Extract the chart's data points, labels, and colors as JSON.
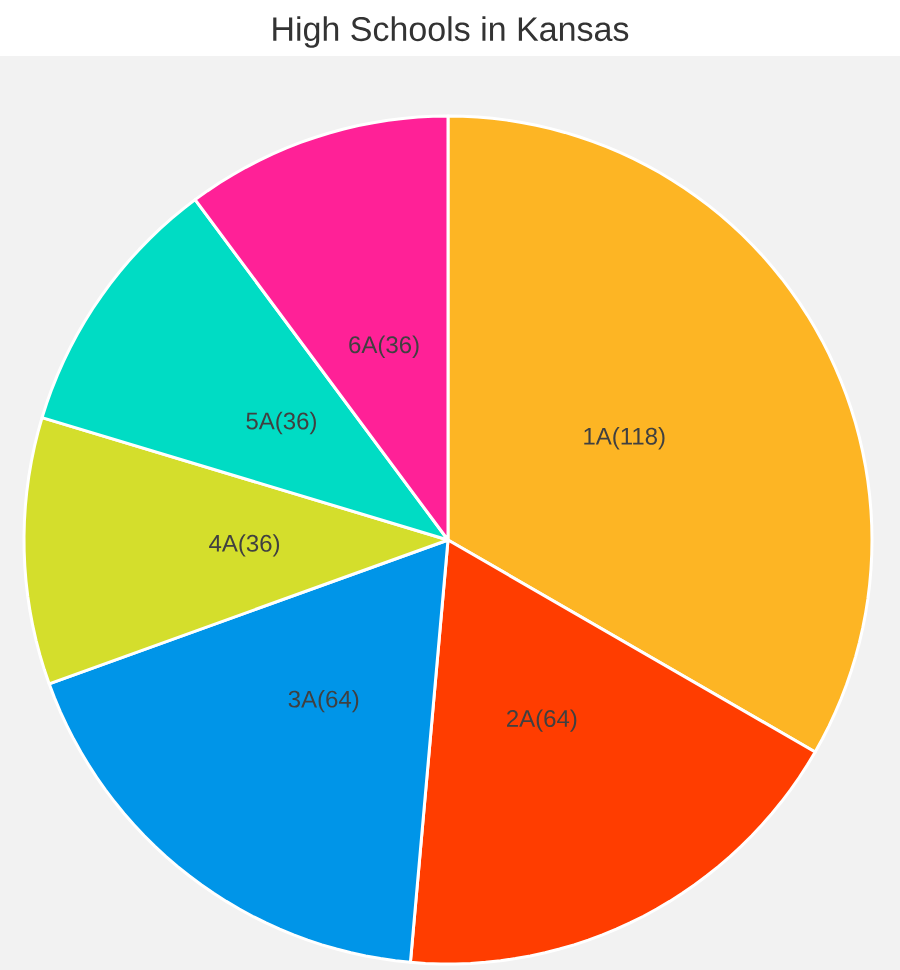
{
  "chart_data": {
    "type": "pie",
    "title": "High Schools in Kansas",
    "categories": [
      "1A(118)",
      "2A(64)",
      "3A(64)",
      "4A(36)",
      "5A(36)",
      "6A(36)"
    ],
    "values": [
      118,
      64,
      64,
      36,
      36,
      36
    ],
    "colors": [
      "#fdb524",
      "#ff3d00",
      "#0095e8",
      "#d4de2c",
      "#00dcc4",
      "#ff2197"
    ]
  }
}
